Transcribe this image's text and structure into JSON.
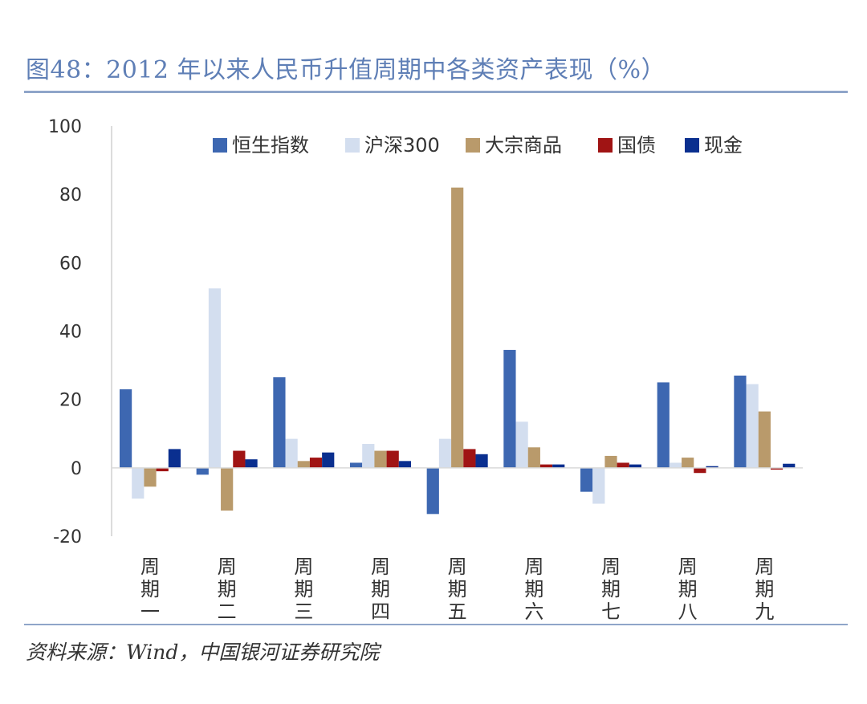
{
  "title": "图48：2012 年以来人民币升值周期中各类资产表现（%）",
  "source": "资料来源：Wind，中国银河证券研究院",
  "chart_data": {
    "type": "bar",
    "categories": [
      "周期一",
      "周期二",
      "周期三",
      "周期四",
      "周期五",
      "周期六",
      "周期七",
      "周期八",
      "周期九"
    ],
    "category_chars": [
      [
        "周",
        "期",
        "一"
      ],
      [
        "周",
        "期",
        "二"
      ],
      [
        "周",
        "期",
        "三"
      ],
      [
        "周",
        "期",
        "四"
      ],
      [
        "周",
        "期",
        "五"
      ],
      [
        "周",
        "期",
        "六"
      ],
      [
        "周",
        "期",
        "七"
      ],
      [
        "周",
        "期",
        "八"
      ],
      [
        "周",
        "期",
        "九"
      ]
    ],
    "series": [
      {
        "name": "恒生指数",
        "color": "#3d67b1",
        "values": [
          23,
          -2,
          26.5,
          1.5,
          -13.5,
          34.5,
          -7,
          25,
          27
        ]
      },
      {
        "name": "沪深300",
        "color": "#d3deef",
        "values": [
          -9,
          52.5,
          8.5,
          7,
          8.5,
          13.5,
          -10.5,
          1.5,
          24.5
        ]
      },
      {
        "name": "大宗商品",
        "color": "#b99a6b",
        "values": [
          -5.5,
          -12.5,
          2,
          5,
          82,
          6,
          3.5,
          3,
          16.5
        ]
      },
      {
        "name": "国债",
        "color": "#a01414",
        "values": [
          -1,
          5,
          3,
          5,
          5.5,
          1,
          1.5,
          -1.5,
          -0.5
        ]
      },
      {
        "name": "现金",
        "color": "#0a2f8f",
        "values": [
          5.5,
          2.5,
          4.5,
          2,
          4,
          1,
          1,
          0.5,
          1.2
        ]
      }
    ],
    "yticks": [
      -20,
      0,
      20,
      40,
      60,
      80,
      100
    ],
    "ylim": [
      -20,
      100
    ],
    "xlabel": "",
    "ylabel": "",
    "legend_position": "top",
    "grid": false
  }
}
